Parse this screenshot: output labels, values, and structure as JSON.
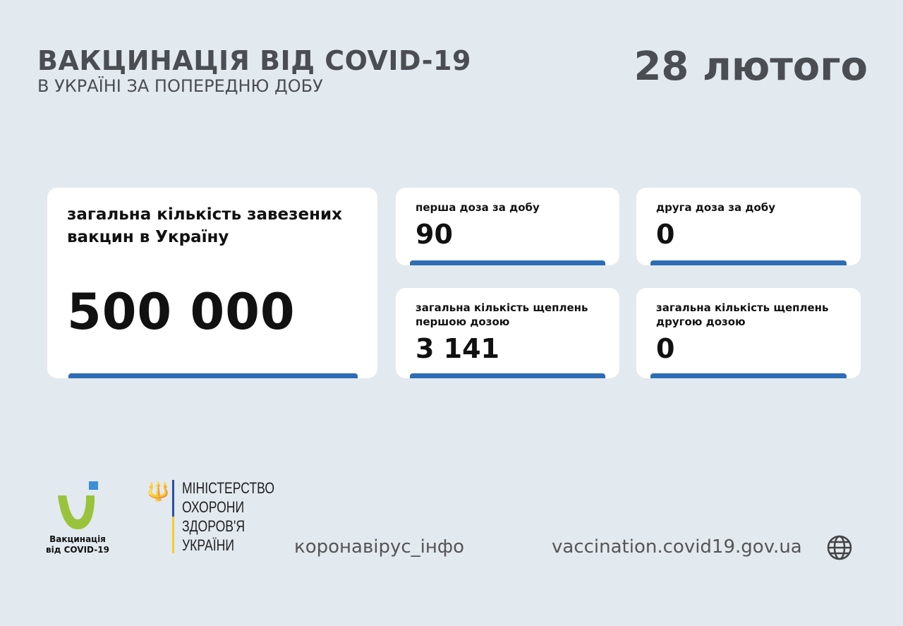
{
  "header": {
    "title": "ВАКЦИНАЦІЯ ВІД COVID-19",
    "subtitle": "В УКРАЇНІ ЗА ПОПЕРЕДНЮ ДОБУ",
    "date": "28 лютого"
  },
  "cards": [
    {
      "label": "загальна кількість завезених вакцин в Україну",
      "value": "500 000"
    },
    {
      "label": "перша доза за добу",
      "value": "90"
    },
    {
      "label": "друга доза за добу",
      "value": "0"
    },
    {
      "label": "загальна кількість щеплень першою дозою",
      "value": "3 141"
    },
    {
      "label": "загальна кількість щеплень другою дозою",
      "value": "0"
    }
  ],
  "footer": {
    "vaccine_logo_text": "Вакцинація від COVID-19",
    "ministry": "МІНІСТЕРСТВО ОХОРОНИ ЗДОРОВ'Я УКРАЇНИ",
    "hashtag": "коронавірус_інфо",
    "website": "vaccination.covid19.gov.ua"
  },
  "colors": {
    "accent": "#2d6db5",
    "logo_green": "#9ac33c",
    "logo_blue": "#3a8fd6"
  }
}
